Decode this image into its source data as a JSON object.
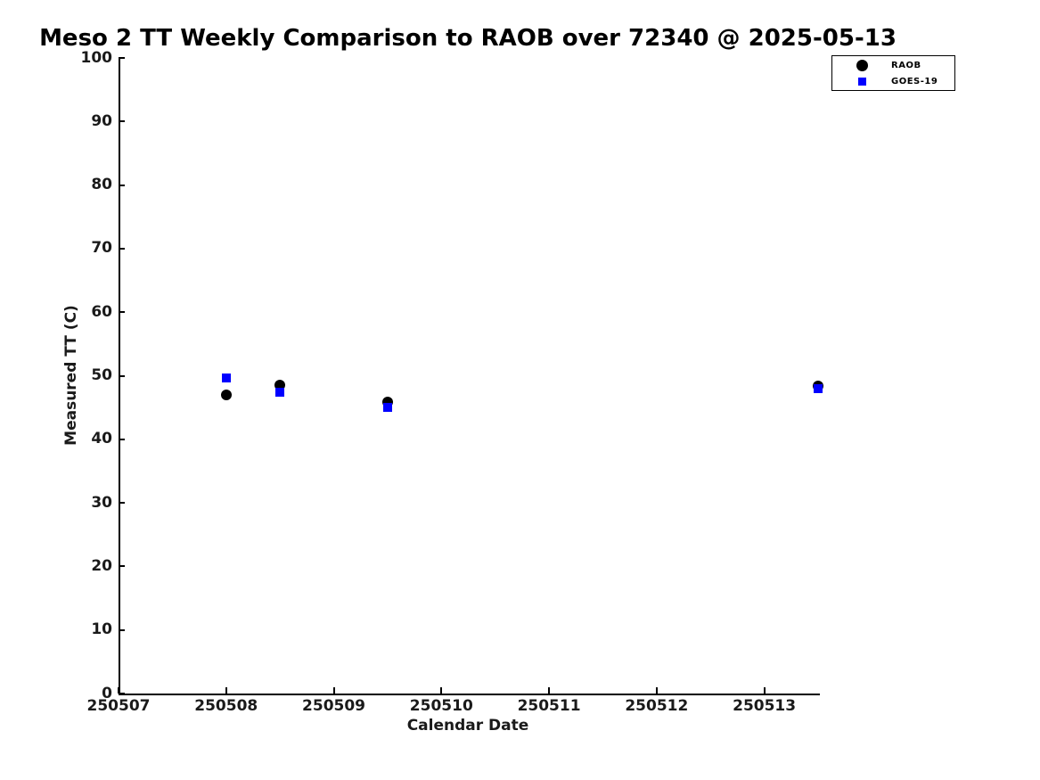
{
  "figure": {
    "background_color": "#ffffff",
    "text_color": "#000000"
  },
  "chart_data": {
    "type": "scatter",
    "title": "Meso 2 TT Weekly Comparison to RAOB over 72340 @ 2025-05-13",
    "xlabel": "Calendar Date",
    "ylabel": "Measured TT (C)",
    "xlim": [
      250507,
      250513.5
    ],
    "ylim": [
      0,
      100
    ],
    "grid": false,
    "legend_position": "top-right",
    "x_ticks": [
      {
        "value": 250507,
        "label": "250507"
      },
      {
        "value": 250508,
        "label": "250508"
      },
      {
        "value": 250509,
        "label": "250509"
      },
      {
        "value": 250510,
        "label": "250510"
      },
      {
        "value": 250511,
        "label": "250511"
      },
      {
        "value": 250512,
        "label": "250512"
      },
      {
        "value": 250513,
        "label": "250513"
      }
    ],
    "y_ticks": [
      {
        "value": 0,
        "label": "0"
      },
      {
        "value": 10,
        "label": "10"
      },
      {
        "value": 20,
        "label": "20"
      },
      {
        "value": 30,
        "label": "30"
      },
      {
        "value": 40,
        "label": "40"
      },
      {
        "value": 50,
        "label": "50"
      },
      {
        "value": 60,
        "label": "60"
      },
      {
        "value": 70,
        "label": "70"
      },
      {
        "value": 80,
        "label": "80"
      },
      {
        "value": 90,
        "label": "90"
      },
      {
        "value": 100,
        "label": "100"
      }
    ],
    "series": [
      {
        "name": "RAOB",
        "marker": "circle",
        "color": "#000000",
        "points": [
          {
            "x": 250508.0,
            "y": 47.0
          },
          {
            "x": 250508.5,
            "y": 48.5
          },
          {
            "x": 250509.5,
            "y": 45.9
          },
          {
            "x": 250513.5,
            "y": 48.4
          }
        ]
      },
      {
        "name": "GOES-19",
        "marker": "square",
        "color": "#0000ff",
        "points": [
          {
            "x": 250508.0,
            "y": 49.7
          },
          {
            "x": 250508.5,
            "y": 47.4
          },
          {
            "x": 250509.5,
            "y": 45.0
          },
          {
            "x": 250513.5,
            "y": 47.9
          }
        ]
      }
    ]
  }
}
